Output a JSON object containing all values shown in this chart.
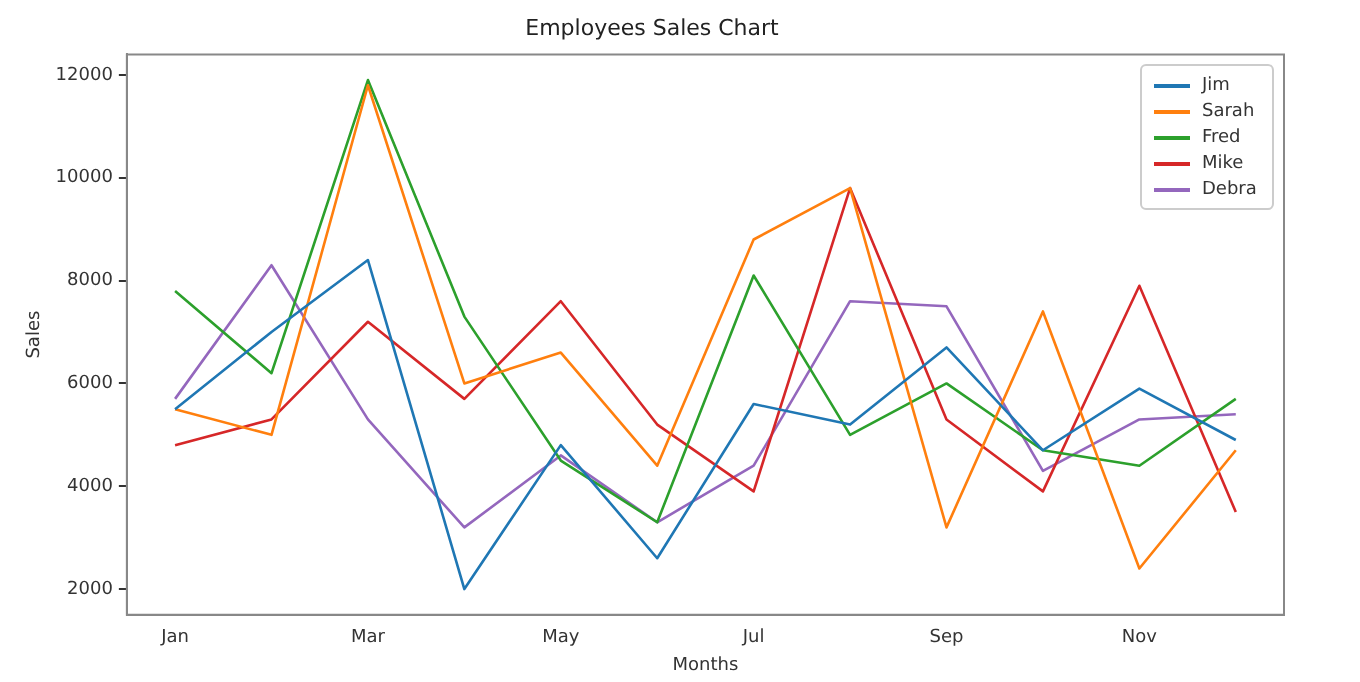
{
  "chart_data": {
    "type": "line",
    "title": "Employees Sales Chart",
    "xlabel": "Months",
    "ylabel": "Sales",
    "categories": [
      "Jan",
      null,
      "Mar",
      null,
      "May",
      null,
      "Jul",
      null,
      "Sep",
      null,
      "Nov",
      null
    ],
    "series": [
      {
        "name": "Jim",
        "color": "#1f77b4",
        "values": [
          5500,
          7000,
          8400,
          2000,
          4800,
          2600,
          5600,
          5200,
          6700,
          4700,
          5900,
          4900
        ]
      },
      {
        "name": "Sarah",
        "color": "#ff7f0e",
        "values": [
          5500,
          5000,
          11800,
          6000,
          6600,
          4400,
          8800,
          9800,
          3200,
          7400,
          2400,
          4700
        ]
      },
      {
        "name": "Fred",
        "color": "#2ca02c",
        "values": [
          7800,
          6200,
          11900,
          7300,
          4500,
          3300,
          8100,
          5000,
          6000,
          4700,
          4400,
          5700
        ]
      },
      {
        "name": "Mike",
        "color": "#d62728",
        "values": [
          4800,
          5300,
          7200,
          5700,
          7600,
          5200,
          3900,
          9800,
          5300,
          3900,
          7900,
          3500
        ]
      },
      {
        "name": "Debra",
        "color": "#9467bd",
        "values": [
          5700,
          8300,
          5300,
          3200,
          4600,
          3300,
          4400,
          7600,
          7500,
          4300,
          5300,
          5400
        ]
      }
    ],
    "ylim": [
      1500,
      12400
    ],
    "yticks": [
      2000,
      4000,
      6000,
      8000,
      10000,
      12000
    ],
    "grid": false,
    "legend": "top right",
    "marker": "none",
    "line_style": "solid"
  }
}
